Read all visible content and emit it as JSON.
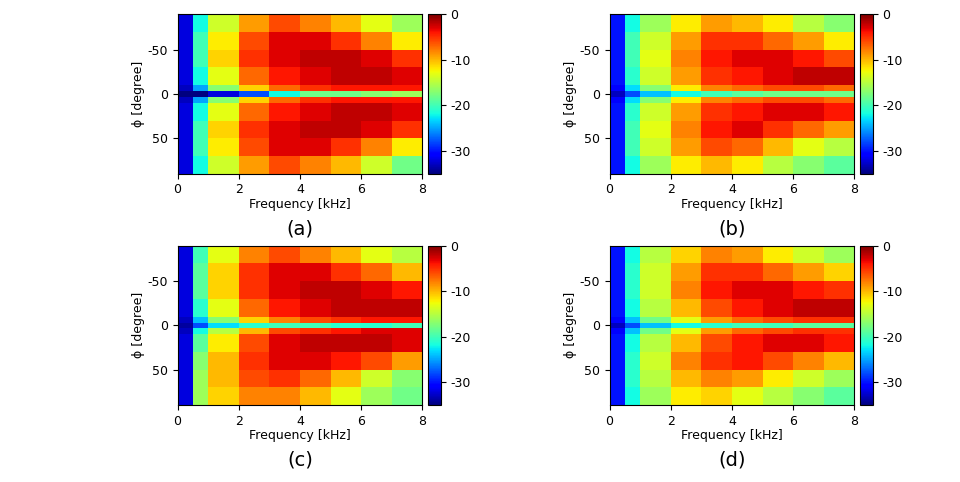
{
  "chart_data": [
    {
      "type": "heatmap",
      "caption": "(a)",
      "x_label": "Frequency [kHz]",
      "y_label": "ϕ [degree]",
      "xlim": [
        0,
        8
      ],
      "ylim": [
        90,
        -90
      ],
      "xticks": [
        0,
        2,
        4,
        6,
        8
      ],
      "yticks": [
        -50,
        0,
        50
      ],
      "x_edges": [
        0,
        0.5,
        1,
        2,
        3,
        4,
        5,
        6,
        7,
        8
      ],
      "y_edges": [
        -90,
        -70,
        -50,
        -30,
        -10,
        -3,
        3,
        10,
        30,
        50,
        70,
        90
      ],
      "cells": [
        [
          -32,
          -22,
          -14,
          -9,
          -6,
          -8,
          -10,
          -13,
          -16
        ],
        [
          -32,
          -20,
          -12,
          -6,
          -3,
          -3,
          -5,
          -8,
          -12
        ],
        [
          -32,
          -20,
          -11,
          -5,
          -3,
          -2,
          -2,
          -3,
          -5
        ],
        [
          -32,
          -22,
          -13,
          -7,
          -4,
          -3,
          -2,
          -2,
          -3
        ],
        [
          -33,
          -25,
          -17,
          -11,
          -7,
          -5,
          -4,
          -4,
          -4
        ],
        [
          -35,
          -35,
          -32,
          -28,
          -22,
          -18,
          -18,
          -17,
          -16
        ],
        [
          -33,
          -25,
          -17,
          -11,
          -7,
          -5,
          -4,
          -4,
          -4
        ],
        [
          -32,
          -22,
          -13,
          -7,
          -4,
          -3,
          -2,
          -2,
          -3
        ],
        [
          -32,
          -20,
          -11,
          -5,
          -3,
          -2,
          -2,
          -3,
          -5
        ],
        [
          -32,
          -20,
          -12,
          -6,
          -3,
          -3,
          -5,
          -8,
          -12
        ],
        [
          -32,
          -22,
          -14,
          -9,
          -6,
          -8,
          -10,
          -14,
          -18
        ]
      ],
      "color_range": [
        -35,
        0
      ],
      "color_ticks": [
        -30,
        -20,
        -10,
        0
      ]
    },
    {
      "type": "heatmap",
      "caption": "(b)",
      "x_label": "Frequency [kHz]",
      "y_label": "ϕ [degree]",
      "xlim": [
        0,
        8
      ],
      "ylim": [
        90,
        -90
      ],
      "xticks": [
        0,
        2,
        4,
        6,
        8
      ],
      "yticks": [
        -50,
        0,
        50
      ],
      "x_edges": [
        0,
        0.5,
        1,
        2,
        3,
        4,
        5,
        6,
        7,
        8
      ],
      "y_edges": [
        -90,
        -70,
        -50,
        -30,
        -10,
        -3,
        3,
        10,
        30,
        50,
        70,
        90
      ],
      "cells": [
        [
          -30,
          -22,
          -16,
          -12,
          -9,
          -10,
          -12,
          -15,
          -17
        ],
        [
          -30,
          -20,
          -14,
          -9,
          -5,
          -5,
          -7,
          -9,
          -12
        ],
        [
          -30,
          -20,
          -13,
          -8,
          -4,
          -3,
          -3,
          -4,
          -6
        ],
        [
          -30,
          -21,
          -14,
          -9,
          -5,
          -4,
          -3,
          -2,
          -2
        ],
        [
          -31,
          -23,
          -17,
          -12,
          -8,
          -7,
          -6,
          -6,
          -7
        ],
        [
          -33,
          -28,
          -24,
          -22,
          -20,
          -19,
          -18,
          -18,
          -18
        ],
        [
          -31,
          -23,
          -17,
          -12,
          -8,
          -7,
          -6,
          -6,
          -7
        ],
        [
          -30,
          -21,
          -14,
          -9,
          -5,
          -4,
          -3,
          -3,
          -4
        ],
        [
          -30,
          -20,
          -13,
          -8,
          -4,
          -3,
          -5,
          -7,
          -9
        ],
        [
          -30,
          -20,
          -14,
          -9,
          -6,
          -7,
          -10,
          -13,
          -15
        ],
        [
          -30,
          -22,
          -16,
          -12,
          -10,
          -12,
          -15,
          -17,
          -19
        ]
      ],
      "color_range": [
        -35,
        0
      ],
      "color_ticks": [
        -30,
        -20,
        -10,
        0
      ]
    },
    {
      "type": "heatmap",
      "caption": "(c)",
      "x_label": "Frequency [kHz]",
      "y_label": "ϕ [degree]",
      "xlim": [
        0,
        8
      ],
      "ylim": [
        90,
        -90
      ],
      "xticks": [
        0,
        2,
        4,
        6,
        8
      ],
      "yticks": [
        -50,
        0,
        50
      ],
      "x_edges": [
        0,
        0.5,
        1,
        2,
        3,
        4,
        5,
        6,
        7,
        8
      ],
      "y_edges": [
        -90,
        -70,
        -50,
        -30,
        -10,
        -3,
        3,
        10,
        30,
        50,
        70,
        90
      ],
      "cells": [
        [
          -32,
          -20,
          -13,
          -8,
          -6,
          -8,
          -10,
          -13,
          -15
        ],
        [
          -32,
          -19,
          -11,
          -5,
          -3,
          -3,
          -5,
          -7,
          -10
        ],
        [
          -32,
          -19,
          -11,
          -5,
          -3,
          -2,
          -2,
          -3,
          -4
        ],
        [
          -32,
          -21,
          -13,
          -7,
          -4,
          -3,
          -2,
          -2,
          -2
        ],
        [
          -33,
          -24,
          -17,
          -11,
          -8,
          -6,
          -5,
          -4,
          -4
        ],
        [
          -34,
          -28,
          -23,
          -21,
          -20,
          -20,
          -21,
          -21,
          -20
        ],
        [
          -33,
          -22,
          -15,
          -10,
          -6,
          -5,
          -4,
          -3,
          -3
        ],
        [
          -32,
          -19,
          -12,
          -6,
          -3,
          -2,
          -2,
          -2,
          -3
        ],
        [
          -32,
          -17,
          -10,
          -5,
          -3,
          -3,
          -4,
          -6,
          -9
        ],
        [
          -32,
          -16,
          -10,
          -6,
          -5,
          -7,
          -10,
          -14,
          -17
        ],
        [
          -32,
          -16,
          -11,
          -8,
          -8,
          -10,
          -13,
          -16,
          -18
        ]
      ],
      "color_range": [
        -35,
        0
      ],
      "color_ticks": [
        -30,
        -20,
        -10,
        0
      ]
    },
    {
      "type": "heatmap",
      "caption": "(d)",
      "x_label": "Frequency [kHz]",
      "y_label": "ϕ [degree]",
      "xlim": [
        0,
        8
      ],
      "ylim": [
        90,
        -90
      ],
      "xticks": [
        0,
        2,
        4,
        6,
        8
      ],
      "yticks": [
        -50,
        0,
        50
      ],
      "x_edges": [
        0,
        0.5,
        1,
        2,
        3,
        4,
        5,
        6,
        7,
        8
      ],
      "y_edges": [
        -90,
        -70,
        -50,
        -30,
        -10,
        -3,
        3,
        10,
        30,
        50,
        70,
        90
      ],
      "cells": [
        [
          -30,
          -22,
          -15,
          -11,
          -8,
          -9,
          -12,
          -14,
          -16
        ],
        [
          -30,
          -21,
          -14,
          -9,
          -5,
          -5,
          -7,
          -9,
          -11
        ],
        [
          -30,
          -21,
          -14,
          -8,
          -4,
          -3,
          -3,
          -4,
          -5
        ],
        [
          -30,
          -22,
          -15,
          -10,
          -6,
          -4,
          -3,
          -2,
          -2
        ],
        [
          -31,
          -24,
          -18,
          -13,
          -9,
          -7,
          -6,
          -5,
          -5
        ],
        [
          -33,
          -28,
          -24,
          -22,
          -21,
          -20,
          -20,
          -19,
          -19
        ],
        [
          -31,
          -24,
          -18,
          -13,
          -9,
          -7,
          -6,
          -5,
          -5
        ],
        [
          -30,
          -22,
          -15,
          -10,
          -6,
          -4,
          -3,
          -3,
          -4
        ],
        [
          -30,
          -21,
          -14,
          -8,
          -5,
          -4,
          -6,
          -8,
          -10
        ],
        [
          -30,
          -21,
          -15,
          -10,
          -8,
          -9,
          -12,
          -14,
          -16
        ],
        [
          -30,
          -22,
          -16,
          -12,
          -11,
          -13,
          -15,
          -17,
          -19
        ]
      ],
      "color_range": [
        -35,
        0
      ],
      "color_ticks": [
        -30,
        -20,
        -10,
        0
      ]
    }
  ]
}
